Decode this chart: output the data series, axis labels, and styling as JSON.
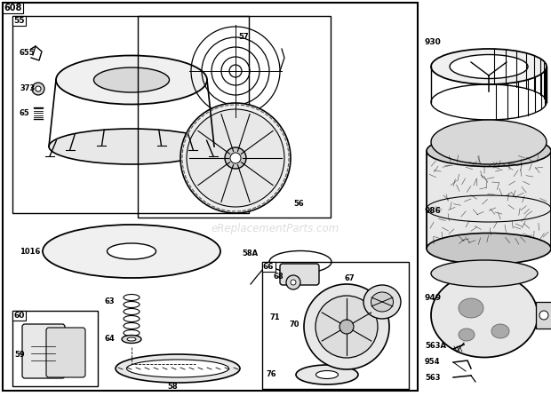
{
  "bg_color": "#ffffff",
  "watermark": "eReplacementParts.com",
  "fig_w": 6.2,
  "fig_h": 4.46,
  "dpi": 100
}
